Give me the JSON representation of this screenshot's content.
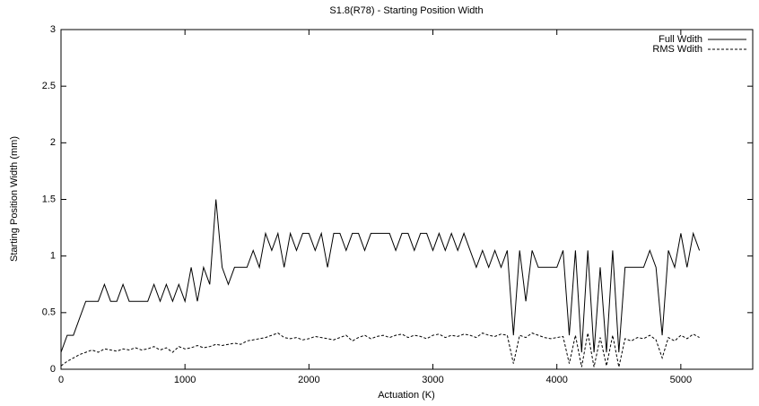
{
  "chart_data": {
    "type": "line",
    "title": "S1.8(R78) - Starting Position Width",
    "xlabel": "Actuation (K)",
    "ylabel": "Starting Position Width (mm)",
    "x": [
      0,
      50,
      100,
      150,
      200,
      250,
      300,
      350,
      400,
      450,
      500,
      550,
      600,
      650,
      700,
      750,
      800,
      850,
      900,
      950,
      1000,
      1050,
      1100,
      1150,
      1200,
      1250,
      1300,
      1350,
      1400,
      1450,
      1500,
      1550,
      1600,
      1650,
      1700,
      1750,
      1800,
      1850,
      1900,
      1950,
      2000,
      2050,
      2100,
      2150,
      2200,
      2250,
      2300,
      2350,
      2400,
      2450,
      2500,
      2550,
      2600,
      2650,
      2700,
      2750,
      2800,
      2850,
      2900,
      2950,
      3000,
      3050,
      3100,
      3150,
      3200,
      3250,
      3300,
      3350,
      3400,
      3450,
      3500,
      3550,
      3600,
      3650,
      3700,
      3750,
      3800,
      3850,
      3900,
      3950,
      4000,
      4050,
      4100,
      4150,
      4200,
      4250,
      4300,
      4350,
      4400,
      4450,
      4500,
      4550,
      4600,
      4650,
      4700,
      4750,
      4800,
      4850,
      4900,
      4950,
      5000,
      5050,
      5100,
      5150
    ],
    "series": [
      {
        "name": "Full Wdith",
        "color": "#000000",
        "line_style": "solid",
        "values": [
          0.15,
          0.3,
          0.3,
          0.45,
          0.6,
          0.6,
          0.6,
          0.75,
          0.6,
          0.6,
          0.75,
          0.6,
          0.6,
          0.6,
          0.6,
          0.75,
          0.6,
          0.75,
          0.6,
          0.75,
          0.6,
          0.9,
          0.6,
          0.9,
          0.75,
          1.5,
          0.9,
          0.75,
          0.9,
          0.9,
          0.9,
          1.05,
          0.9,
          1.2,
          1.05,
          1.2,
          0.9,
          1.2,
          1.05,
          1.2,
          1.2,
          1.05,
          1.2,
          0.9,
          1.2,
          1.2,
          1.05,
          1.2,
          1.2,
          1.05,
          1.2,
          1.2,
          1.2,
          1.2,
          1.05,
          1.2,
          1.2,
          1.05,
          1.2,
          1.2,
          1.05,
          1.2,
          1.05,
          1.2,
          1.05,
          1.2,
          1.05,
          0.9,
          1.05,
          0.9,
          1.05,
          0.9,
          1.05,
          0.3,
          1.05,
          0.6,
          1.05,
          0.9,
          0.9,
          0.9,
          0.9,
          1.05,
          0.3,
          1.05,
          0.15,
          1.05,
          0.15,
          0.9,
          0.15,
          1.05,
          0.15,
          0.9,
          0.9,
          0.9,
          0.9,
          1.05,
          0.9,
          0.3,
          1.05,
          0.9,
          1.2,
          0.9,
          1.2,
          1.05
        ]
      },
      {
        "name": "RMS Wdith",
        "color": "#000000",
        "line_style": "dashed",
        "values": [
          0.03,
          0.07,
          0.1,
          0.13,
          0.15,
          0.17,
          0.15,
          0.18,
          0.17,
          0.16,
          0.18,
          0.17,
          0.19,
          0.17,
          0.18,
          0.2,
          0.17,
          0.19,
          0.15,
          0.2,
          0.18,
          0.19,
          0.21,
          0.19,
          0.2,
          0.22,
          0.21,
          0.22,
          0.23,
          0.22,
          0.25,
          0.26,
          0.27,
          0.28,
          0.3,
          0.32,
          0.28,
          0.27,
          0.28,
          0.26,
          0.27,
          0.29,
          0.28,
          0.27,
          0.26,
          0.28,
          0.3,
          0.25,
          0.28,
          0.3,
          0.27,
          0.29,
          0.3,
          0.28,
          0.3,
          0.31,
          0.28,
          0.3,
          0.29,
          0.27,
          0.3,
          0.31,
          0.28,
          0.3,
          0.29,
          0.31,
          0.3,
          0.28,
          0.32,
          0.3,
          0.29,
          0.31,
          0.3,
          0.05,
          0.3,
          0.28,
          0.32,
          0.3,
          0.28,
          0.27,
          0.28,
          0.29,
          0.05,
          0.3,
          0.02,
          0.32,
          0.02,
          0.28,
          0.03,
          0.3,
          0.02,
          0.27,
          0.25,
          0.28,
          0.27,
          0.3,
          0.26,
          0.1,
          0.28,
          0.25,
          0.3,
          0.27,
          0.31,
          0.28
        ]
      }
    ],
    "xlim": [
      0,
      5580
    ],
    "ylim": [
      0,
      3
    ],
    "xticks": [
      0,
      1000,
      2000,
      3000,
      4000,
      5000
    ],
    "yticks": [
      0,
      0.5,
      1,
      1.5,
      2,
      2.5,
      3
    ],
    "legend": "top-right"
  }
}
